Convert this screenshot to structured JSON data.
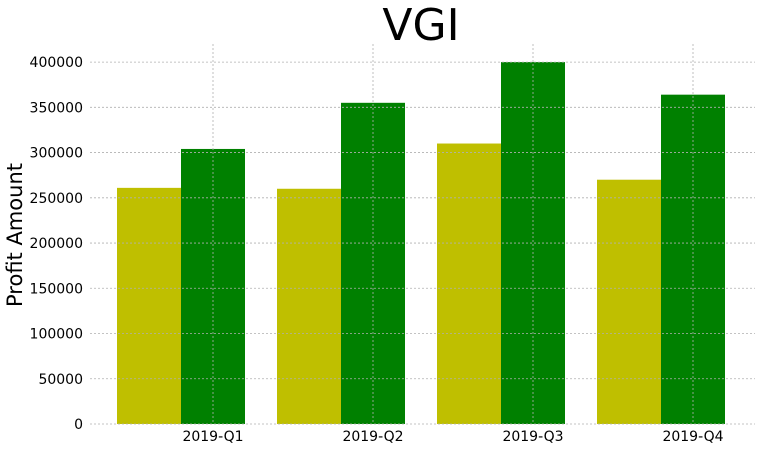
{
  "chart_data": {
    "type": "bar",
    "title": "VGI",
    "xlabel": "",
    "ylabel": "Profit Amount",
    "categories": [
      "2019-Q1",
      "2019-Q2",
      "2019-Q3",
      "2019-Q4"
    ],
    "series": [
      {
        "color": "#bfbf00",
        "values": [
          261000,
          260000,
          310000,
          270000
        ]
      },
      {
        "color": "#008000",
        "values": [
          304000,
          355000,
          400000,
          364000
        ]
      }
    ],
    "ylim": [
      0,
      420000
    ],
    "yticks": [
      0,
      50000,
      100000,
      150000,
      200000,
      250000,
      300000,
      350000,
      400000
    ],
    "ytick_labels": [
      "0",
      "50000",
      "100000",
      "150000",
      "200000",
      "250000",
      "300000",
      "350000",
      "400000"
    ],
    "grid": true,
    "legend": "none"
  }
}
